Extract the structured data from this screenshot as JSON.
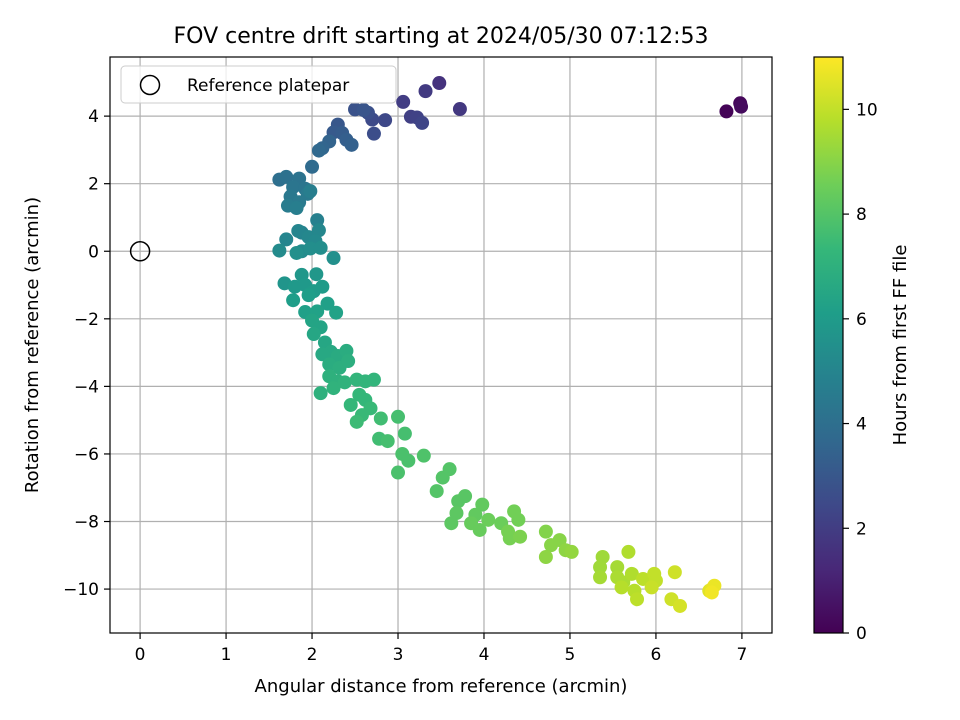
{
  "chart_data": {
    "type": "scatter",
    "title": "FOV centre drift starting at 2024/05/30 07:12:53",
    "xlabel": "Angular distance from reference (arcmin)",
    "ylabel": "Rotation from reference (arcmin)",
    "xlim": [
      -0.35,
      7.35
    ],
    "ylim": [
      -11.3,
      5.75
    ],
    "xticks": [
      0,
      1,
      2,
      3,
      4,
      5,
      6,
      7
    ],
    "xtick_labels": [
      "0",
      "1",
      "2",
      "3",
      "4",
      "5",
      "6",
      "7"
    ],
    "yticks": [
      -10,
      -8,
      -6,
      -4,
      -2,
      0,
      2,
      4
    ],
    "ytick_labels": [
      "−10",
      "−8",
      "−6",
      "−4",
      "−2",
      "0",
      "2",
      "4"
    ],
    "grid": true,
    "legend": {
      "position": "top-left",
      "entries": [
        {
          "label": "Reference platepar",
          "marker": "open-circle",
          "x": 0,
          "y": 0
        }
      ]
    },
    "colorbar": {
      "label": "Hours from first FF file",
      "colormap": "viridis",
      "range": [
        0,
        11
      ],
      "ticks": [
        0,
        2,
        4,
        6,
        8,
        10
      ],
      "tick_labels": [
        "0",
        "2",
        "4",
        "6",
        "8",
        "10"
      ],
      "stops": [
        "#440154",
        "#482878",
        "#3e4989",
        "#31688e",
        "#26828e",
        "#1f9e89",
        "#35b779",
        "#6ece58",
        "#b5de2b",
        "#fde725"
      ]
    },
    "series": [
      {
        "marker": "filled-circle",
        "points": [
          {
            "x": 6.82,
            "y": 4.14,
            "c": 0.1
          },
          {
            "x": 6.98,
            "y": 4.38,
            "c": 0.2
          },
          {
            "x": 6.99,
            "y": 4.28,
            "c": 0.3
          },
          {
            "x": 3.48,
            "y": 4.98,
            "c": 1.6
          },
          {
            "x": 3.72,
            "y": 4.21,
            "c": 1.8
          },
          {
            "x": 3.32,
            "y": 4.74,
            "c": 1.9
          },
          {
            "x": 3.06,
            "y": 4.42,
            "c": 2.0
          },
          {
            "x": 3.15,
            "y": 3.98,
            "c": 2.1
          },
          {
            "x": 3.22,
            "y": 3.96,
            "c": 2.2
          },
          {
            "x": 3.28,
            "y": 3.8,
            "c": 2.3
          },
          {
            "x": 2.85,
            "y": 3.88,
            "c": 2.4
          },
          {
            "x": 2.7,
            "y": 3.9,
            "c": 2.5
          },
          {
            "x": 2.72,
            "y": 3.48,
            "c": 2.6
          },
          {
            "x": 2.65,
            "y": 4.1,
            "c": 2.7
          },
          {
            "x": 2.5,
            "y": 4.2,
            "c": 2.8
          },
          {
            "x": 2.6,
            "y": 4.18,
            "c": 2.9
          },
          {
            "x": 2.3,
            "y": 3.75,
            "c": 3.0
          },
          {
            "x": 2.25,
            "y": 3.52,
            "c": 3.1
          },
          {
            "x": 2.35,
            "y": 3.5,
            "c": 3.2
          },
          {
            "x": 2.4,
            "y": 3.3,
            "c": 3.3
          },
          {
            "x": 2.46,
            "y": 3.15,
            "c": 3.4
          },
          {
            "x": 2.2,
            "y": 3.25,
            "c": 3.5
          },
          {
            "x": 2.12,
            "y": 3.05,
            "c": 3.6
          },
          {
            "x": 2.08,
            "y": 2.98,
            "c": 3.7
          },
          {
            "x": 2.0,
            "y": 2.5,
            "c": 3.8
          },
          {
            "x": 1.62,
            "y": 2.12,
            "c": 4.0
          },
          {
            "x": 1.7,
            "y": 2.2,
            "c": 4.1
          },
          {
            "x": 1.85,
            "y": 2.15,
            "c": 4.2
          },
          {
            "x": 1.78,
            "y": 1.9,
            "c": 4.3
          },
          {
            "x": 1.92,
            "y": 1.85,
            "c": 4.3
          },
          {
            "x": 1.75,
            "y": 1.62,
            "c": 4.4
          },
          {
            "x": 1.95,
            "y": 1.7,
            "c": 4.5
          },
          {
            "x": 1.85,
            "y": 1.45,
            "c": 4.5
          },
          {
            "x": 1.72,
            "y": 1.35,
            "c": 4.6
          },
          {
            "x": 1.82,
            "y": 1.28,
            "c": 4.7
          },
          {
            "x": 1.98,
            "y": 1.78,
            "c": 4.7
          },
          {
            "x": 2.06,
            "y": 0.92,
            "c": 4.8
          },
          {
            "x": 1.88,
            "y": 0.55,
            "c": 4.9
          },
          {
            "x": 1.7,
            "y": 0.35,
            "c": 5.0
          },
          {
            "x": 1.84,
            "y": 0.6,
            "c": 5.0
          },
          {
            "x": 1.96,
            "y": 0.42,
            "c": 5.1
          },
          {
            "x": 2.08,
            "y": 0.62,
            "c": 5.1
          },
          {
            "x": 2.04,
            "y": 0.3,
            "c": 5.2
          },
          {
            "x": 1.62,
            "y": 0.02,
            "c": 5.3
          },
          {
            "x": 1.88,
            "y": 0.0,
            "c": 5.3
          },
          {
            "x": 1.98,
            "y": 0.08,
            "c": 5.4
          },
          {
            "x": 2.1,
            "y": 0.1,
            "c": 5.4
          },
          {
            "x": 2.25,
            "y": -0.2,
            "c": 5.5
          },
          {
            "x": 1.82,
            "y": -0.05,
            "c": 5.5
          },
          {
            "x": 1.68,
            "y": -0.95,
            "c": 5.7
          },
          {
            "x": 1.88,
            "y": -0.7,
            "c": 5.8
          },
          {
            "x": 2.05,
            "y": -0.68,
            "c": 5.8
          },
          {
            "x": 1.8,
            "y": -1.05,
            "c": 5.9
          },
          {
            "x": 1.92,
            "y": -1.0,
            "c": 5.9
          },
          {
            "x": 2.02,
            "y": -1.18,
            "c": 6.0
          },
          {
            "x": 2.12,
            "y": -1.05,
            "c": 6.0
          },
          {
            "x": 1.96,
            "y": -1.3,
            "c": 6.1
          },
          {
            "x": 1.78,
            "y": -1.45,
            "c": 6.1
          },
          {
            "x": 2.18,
            "y": -1.55,
            "c": 6.2
          },
          {
            "x": 1.92,
            "y": -1.8,
            "c": 6.2
          },
          {
            "x": 2.06,
            "y": -1.78,
            "c": 6.3
          },
          {
            "x": 2.28,
            "y": -1.82,
            "c": 6.3
          },
          {
            "x": 2.0,
            "y": -2.05,
            "c": 6.4
          },
          {
            "x": 2.1,
            "y": -2.25,
            "c": 6.4
          },
          {
            "x": 2.02,
            "y": -2.45,
            "c": 6.5
          },
          {
            "x": 2.15,
            "y": -2.7,
            "c": 6.5
          },
          {
            "x": 2.22,
            "y": -2.98,
            "c": 6.6
          },
          {
            "x": 2.12,
            "y": -3.05,
            "c": 6.6
          },
          {
            "x": 2.3,
            "y": -3.1,
            "c": 6.7
          },
          {
            "x": 2.4,
            "y": -2.95,
            "c": 6.8
          },
          {
            "x": 2.2,
            "y": -3.35,
            "c": 6.8
          },
          {
            "x": 2.32,
            "y": -3.45,
            "c": 6.9
          },
          {
            "x": 2.42,
            "y": -3.25,
            "c": 6.9
          },
          {
            "x": 2.2,
            "y": -3.7,
            "c": 7.0
          },
          {
            "x": 2.3,
            "y": -3.85,
            "c": 7.0
          },
          {
            "x": 2.1,
            "y": -4.2,
            "c": 7.0
          },
          {
            "x": 2.25,
            "y": -4.05,
            "c": 7.1
          },
          {
            "x": 2.38,
            "y": -3.88,
            "c": 7.1
          },
          {
            "x": 2.52,
            "y": -3.8,
            "c": 7.2
          },
          {
            "x": 2.62,
            "y": -3.85,
            "c": 7.2
          },
          {
            "x": 2.72,
            "y": -3.8,
            "c": 7.2
          },
          {
            "x": 2.55,
            "y": -4.25,
            "c": 7.3
          },
          {
            "x": 2.45,
            "y": -4.55,
            "c": 7.3
          },
          {
            "x": 2.62,
            "y": -4.4,
            "c": 7.3
          },
          {
            "x": 2.68,
            "y": -4.65,
            "c": 7.4
          },
          {
            "x": 2.58,
            "y": -4.85,
            "c": 7.4
          },
          {
            "x": 2.52,
            "y": -5.05,
            "c": 7.5
          },
          {
            "x": 2.8,
            "y": -4.95,
            "c": 7.6
          },
          {
            "x": 2.78,
            "y": -5.55,
            "c": 7.6
          },
          {
            "x": 2.88,
            "y": -5.62,
            "c": 7.7
          },
          {
            "x": 3.0,
            "y": -4.9,
            "c": 7.7
          },
          {
            "x": 3.08,
            "y": -5.4,
            "c": 7.7
          },
          {
            "x": 3.05,
            "y": -6.0,
            "c": 7.8
          },
          {
            "x": 3.12,
            "y": -6.2,
            "c": 7.8
          },
          {
            "x": 3.0,
            "y": -6.55,
            "c": 7.8
          },
          {
            "x": 3.3,
            "y": -6.05,
            "c": 7.9
          },
          {
            "x": 3.45,
            "y": -7.1,
            "c": 8.0
          },
          {
            "x": 3.52,
            "y": -6.7,
            "c": 8.0
          },
          {
            "x": 3.6,
            "y": -6.45,
            "c": 8.0
          },
          {
            "x": 3.7,
            "y": -7.4,
            "c": 8.1
          },
          {
            "x": 3.78,
            "y": -7.25,
            "c": 8.1
          },
          {
            "x": 3.68,
            "y": -7.75,
            "c": 8.2
          },
          {
            "x": 3.62,
            "y": -8.05,
            "c": 8.2
          },
          {
            "x": 3.9,
            "y": -7.8,
            "c": 8.3
          },
          {
            "x": 3.98,
            "y": -7.5,
            "c": 8.3
          },
          {
            "x": 3.85,
            "y": -8.05,
            "c": 8.4
          },
          {
            "x": 3.95,
            "y": -8.25,
            "c": 8.4
          },
          {
            "x": 4.05,
            "y": -7.95,
            "c": 8.5
          },
          {
            "x": 4.2,
            "y": -8.05,
            "c": 8.5
          },
          {
            "x": 4.35,
            "y": -7.7,
            "c": 8.6
          },
          {
            "x": 4.4,
            "y": -7.95,
            "c": 8.6
          },
          {
            "x": 4.28,
            "y": -8.3,
            "c": 8.7
          },
          {
            "x": 4.3,
            "y": -8.5,
            "c": 8.7
          },
          {
            "x": 4.42,
            "y": -8.45,
            "c": 8.8
          },
          {
            "x": 4.72,
            "y": -8.3,
            "c": 8.9
          },
          {
            "x": 4.78,
            "y": -8.7,
            "c": 9.0
          },
          {
            "x": 4.88,
            "y": -8.55,
            "c": 9.0
          },
          {
            "x": 4.72,
            "y": -9.05,
            "c": 9.1
          },
          {
            "x": 4.95,
            "y": -8.85,
            "c": 9.1
          },
          {
            "x": 5.02,
            "y": -8.9,
            "c": 9.2
          },
          {
            "x": 5.38,
            "y": -9.05,
            "c": 9.4
          },
          {
            "x": 5.35,
            "y": -9.35,
            "c": 9.4
          },
          {
            "x": 5.35,
            "y": -9.65,
            "c": 9.5
          },
          {
            "x": 5.55,
            "y": -9.35,
            "c": 9.5
          },
          {
            "x": 5.55,
            "y": -9.65,
            "c": 9.6
          },
          {
            "x": 5.62,
            "y": -9.8,
            "c": 9.6
          },
          {
            "x": 5.68,
            "y": -8.9,
            "c": 9.7
          },
          {
            "x": 5.72,
            "y": -9.55,
            "c": 9.7
          },
          {
            "x": 5.6,
            "y": -9.95,
            "c": 9.8
          },
          {
            "x": 5.75,
            "y": -10.05,
            "c": 9.8
          },
          {
            "x": 5.78,
            "y": -10.3,
            "c": 9.9
          },
          {
            "x": 5.85,
            "y": -9.7,
            "c": 9.9
          },
          {
            "x": 5.98,
            "y": -9.55,
            "c": 10.0
          },
          {
            "x": 6.0,
            "y": -9.75,
            "c": 10.0
          },
          {
            "x": 5.95,
            "y": -9.95,
            "c": 10.1
          },
          {
            "x": 6.18,
            "y": -10.3,
            "c": 10.2
          },
          {
            "x": 6.22,
            "y": -9.5,
            "c": 10.2
          },
          {
            "x": 6.28,
            "y": -10.5,
            "c": 10.3
          },
          {
            "x": 6.62,
            "y": -10.05,
            "c": 10.5
          },
          {
            "x": 6.65,
            "y": -10.0,
            "c": 10.6
          },
          {
            "x": 6.68,
            "y": -9.9,
            "c": 10.7
          },
          {
            "x": 6.65,
            "y": -10.1,
            "c": 10.8
          }
        ]
      }
    ]
  }
}
